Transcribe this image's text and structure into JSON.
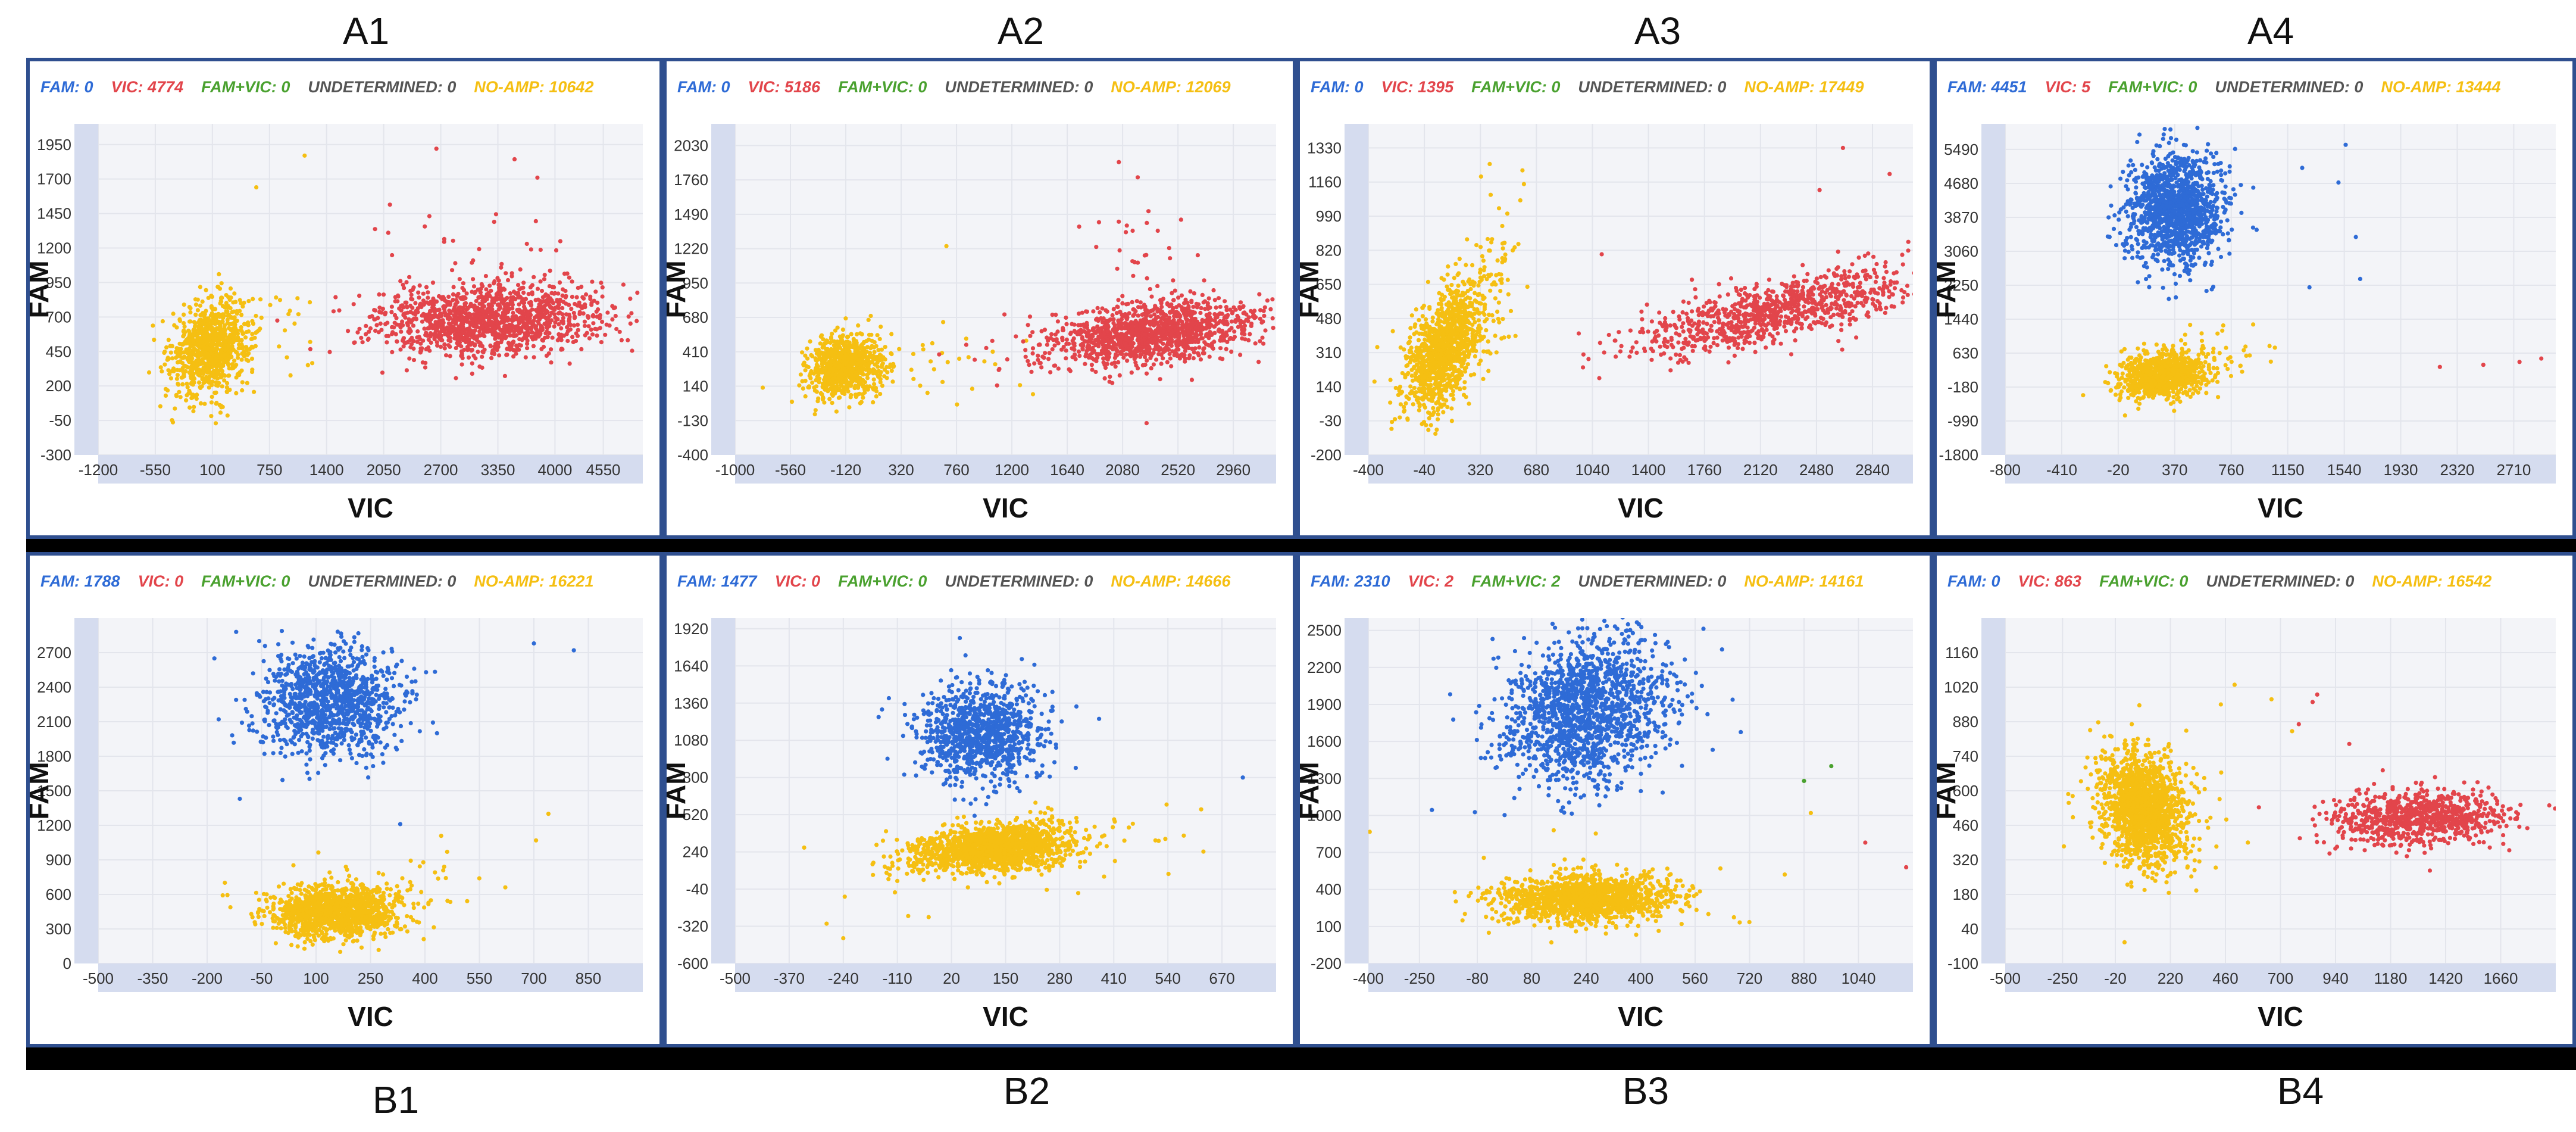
{
  "colors": {
    "fam": "#2e6bd6",
    "vic": "#e2454b",
    "fam_vic": "#4aa12f",
    "undetermined": "#555555",
    "no_amp": "#f5bf12",
    "axis_band": "#d5dcef",
    "plot_bg": "#f3f4f8",
    "grid": "#e3e5ec",
    "panel_border": "#2f4f8f",
    "band": "#000000"
  },
  "chart_data": [
    {
      "id": "A1",
      "type": "scatter",
      "title": "A1",
      "xlabel": "VIC",
      "ylabel": "FAM",
      "xlim": [
        -1200,
        5000
      ],
      "ylim": [
        -300,
        2100
      ],
      "xticks": [
        -1200,
        -550,
        100,
        750,
        1400,
        2050,
        2700,
        3350,
        4000,
        4550
      ],
      "yticks": [
        -300,
        -50,
        200,
        450,
        700,
        950,
        1200,
        1450,
        1700,
        1950
      ],
      "legend": [
        {
          "key": "fam",
          "text": "FAM: 0"
        },
        {
          "key": "vic",
          "text": "VIC: 4774"
        },
        {
          "key": "fam_vic",
          "text": "FAM+VIC: 0"
        },
        {
          "key": "undetermined",
          "text": "UNDETERMINED: 0"
        },
        {
          "key": "no_amp",
          "text": "NO-AMP: 10642"
        }
      ],
      "clusters": [
        {
          "series": "no_amp",
          "n": 900,
          "cx": 80,
          "cy": 480,
          "sx": 220,
          "sy": 170,
          "corr": 0.2
        },
        {
          "series": "no_amp",
          "n": 35,
          "cx": 750,
          "cy": 620,
          "sx": 350,
          "sy": 250,
          "corr": 0
        },
        {
          "series": "vic",
          "n": 1300,
          "cx": 3250,
          "cy": 680,
          "sx": 650,
          "sy": 130,
          "corr": 0.15
        },
        {
          "series": "vic",
          "n": 40,
          "cx": 3000,
          "cy": 1100,
          "sx": 600,
          "sy": 250,
          "corr": 0
        }
      ],
      "outliers": [
        {
          "series": "vic",
          "x": 2650,
          "y": 1920
        },
        {
          "series": "vic",
          "x": 3800,
          "y": 1710
        },
        {
          "series": "no_amp",
          "x": 1150,
          "y": 1870
        },
        {
          "series": "no_amp",
          "x": 600,
          "y": 1640
        }
      ]
    },
    {
      "id": "A2",
      "type": "scatter",
      "title": "A2",
      "xlabel": "VIC",
      "ylabel": "FAM",
      "xlim": [
        -1000,
        3300
      ],
      "ylim": [
        -400,
        2200
      ],
      "xticks": [
        -1000,
        -560,
        -120,
        320,
        760,
        1200,
        1640,
        2080,
        2520,
        2960
      ],
      "yticks": [
        -400,
        -130,
        140,
        410,
        680,
        950,
        1220,
        1490,
        1760,
        2030
      ],
      "legend": [
        {
          "key": "fam",
          "text": "FAM: 0"
        },
        {
          "key": "vic",
          "text": "VIC: 5186"
        },
        {
          "key": "fam_vic",
          "text": "FAM+VIC: 0"
        },
        {
          "key": "undetermined",
          "text": "UNDETERMINED: 0"
        },
        {
          "key": "no_amp",
          "text": "NO-AMP: 12069"
        }
      ],
      "clusters": [
        {
          "series": "no_amp",
          "n": 800,
          "cx": -120,
          "cy": 290,
          "sx": 150,
          "sy": 120,
          "corr": 0.1
        },
        {
          "series": "no_amp",
          "n": 30,
          "cx": 600,
          "cy": 320,
          "sx": 300,
          "sy": 150,
          "corr": 0
        },
        {
          "series": "vic",
          "n": 1300,
          "cx": 2300,
          "cy": 550,
          "sx": 420,
          "sy": 130,
          "corr": 0.4
        },
        {
          "series": "vic",
          "n": 40,
          "cx": 2200,
          "cy": 950,
          "sx": 300,
          "sy": 350,
          "corr": 0
        }
      ],
      "outliers": [
        {
          "series": "vic",
          "x": 2050,
          "y": 1900
        },
        {
          "series": "vic",
          "x": 2200,
          "y": 1780
        },
        {
          "series": "no_amp",
          "x": 680,
          "y": 1240
        }
      ]
    },
    {
      "id": "A3",
      "type": "scatter",
      "title": "A3",
      "xlabel": "VIC",
      "ylabel": "FAM",
      "xlim": [
        -400,
        3100
      ],
      "ylim": [
        -200,
        1450
      ],
      "xticks": [
        -400,
        -40,
        320,
        680,
        1040,
        1400,
        1760,
        2120,
        2480,
        2840
      ],
      "yticks": [
        -200,
        -30,
        140,
        310,
        480,
        650,
        820,
        990,
        1160,
        1330
      ],
      "legend": [
        {
          "key": "fam",
          "text": "FAM: 0"
        },
        {
          "key": "vic",
          "text": "VIC: 1395"
        },
        {
          "key": "fam_vic",
          "text": "FAM+VIC: 0"
        },
        {
          "key": "undetermined",
          "text": "UNDETERMINED: 0"
        },
        {
          "key": "no_amp",
          "text": "NO-AMP: 17449"
        }
      ],
      "clusters": [
        {
          "series": "no_amp",
          "n": 1100,
          "cx": 80,
          "cy": 320,
          "sx": 130,
          "sy": 150,
          "corr": 0.45
        },
        {
          "series": "no_amp",
          "n": 100,
          "cx": 350,
          "cy": 650,
          "sx": 150,
          "sy": 200,
          "corr": 0.3
        },
        {
          "series": "vic",
          "n": 900,
          "cx": 2200,
          "cy": 510,
          "sx": 450,
          "sy": 110,
          "corr": 0.7
        }
      ],
      "outliers": [
        {
          "series": "no_amp",
          "x": 380,
          "y": 1250
        },
        {
          "series": "no_amp",
          "x": 600,
          "y": 1150
        },
        {
          "series": "vic",
          "x": 2650,
          "y": 1330
        },
        {
          "series": "vic",
          "x": 2950,
          "y": 1200
        },
        {
          "series": "vic",
          "x": 2500,
          "y": 1120
        },
        {
          "series": "vic",
          "x": 1100,
          "y": 800
        }
      ]
    },
    {
      "id": "A4",
      "type": "scatter",
      "title": "A4",
      "xlabel": "VIC",
      "ylabel": "FAM",
      "xlim": [
        -800,
        3000
      ],
      "ylim": [
        -1800,
        6100
      ],
      "xticks": [
        -800,
        -410,
        -20,
        370,
        760,
        1150,
        1540,
        1930,
        2320,
        2710
      ],
      "yticks": [
        -1800,
        -990,
        -180,
        630,
        1440,
        2250,
        3060,
        3870,
        4680,
        5490
      ],
      "legend": [
        {
          "key": "fam",
          "text": "FAM: 4451"
        },
        {
          "key": "vic",
          "text": "VIC: 5"
        },
        {
          "key": "fam_vic",
          "text": "FAM+VIC: 0"
        },
        {
          "key": "undetermined",
          "text": "UNDETERMINED: 0"
        },
        {
          "key": "no_amp",
          "text": "NO-AMP: 13444"
        }
      ],
      "clusters": [
        {
          "series": "no_amp",
          "n": 900,
          "cx": 300,
          "cy": 100,
          "sx": 150,
          "sy": 280,
          "corr": 0.2
        },
        {
          "series": "no_amp",
          "n": 40,
          "cx": 600,
          "cy": 700,
          "sx": 300,
          "sy": 300,
          "corr": 0
        },
        {
          "series": "fam",
          "n": 1300,
          "cx": 370,
          "cy": 4050,
          "sx": 170,
          "sy": 650,
          "corr": 0
        }
      ],
      "outliers": [
        {
          "series": "fam",
          "x": 1250,
          "y": 5050
        },
        {
          "series": "fam",
          "x": 1500,
          "y": 4700
        },
        {
          "series": "fam",
          "x": 1620,
          "y": 3400
        },
        {
          "series": "fam",
          "x": 1650,
          "y": 2400
        },
        {
          "series": "fam",
          "x": 1300,
          "y": 2200
        },
        {
          "series": "fam",
          "x": 1550,
          "y": 5600
        },
        {
          "series": "vic",
          "x": 2200,
          "y": 300
        },
        {
          "series": "vic",
          "x": 2500,
          "y": 350
        },
        {
          "series": "vic",
          "x": 2750,
          "y": 420
        },
        {
          "series": "vic",
          "x": 2900,
          "y": 500
        }
      ]
    },
    {
      "id": "B1",
      "type": "scatter",
      "title": "B1",
      "xlabel": "VIC",
      "ylabel": "FAM",
      "xlim": [
        -500,
        1000
      ],
      "ylim": [
        0,
        3000
      ],
      "xticks": [
        -500,
        -350,
        -200,
        -50,
        100,
        250,
        400,
        550,
        700,
        850
      ],
      "yticks": [
        0,
        300,
        600,
        900,
        1200,
        1500,
        1800,
        2100,
        2400,
        2700
      ],
      "legend": [
        {
          "key": "fam",
          "text": "FAM: 1788"
        },
        {
          "key": "vic",
          "text": "VIC: 0"
        },
        {
          "key": "fam_vic",
          "text": "FAM+VIC: 0"
        },
        {
          "key": "undetermined",
          "text": "UNDETERMINED: 0"
        },
        {
          "key": "no_amp",
          "text": "NO-AMP: 16221"
        }
      ],
      "clusters": [
        {
          "series": "fam",
          "n": 1100,
          "cx": 140,
          "cy": 2280,
          "sx": 100,
          "sy": 240,
          "corr": 0
        },
        {
          "series": "no_amp",
          "n": 1300,
          "cx": 150,
          "cy": 450,
          "sx": 85,
          "sy": 110,
          "corr": 0.1
        },
        {
          "series": "no_amp",
          "n": 40,
          "cx": 350,
          "cy": 600,
          "sx": 200,
          "sy": 200,
          "corr": 0
        }
      ],
      "outliers": [
        {
          "series": "fam",
          "x": -120,
          "y": 2880
        },
        {
          "series": "fam",
          "x": 700,
          "y": 2780
        },
        {
          "series": "fam",
          "x": 810,
          "y": 2720
        },
        {
          "series": "fam",
          "x": -180,
          "y": 2650
        },
        {
          "series": "fam",
          "x": -110,
          "y": 1430
        },
        {
          "series": "no_amp",
          "x": 740,
          "y": 1300
        }
      ]
    },
    {
      "id": "B2",
      "type": "scatter",
      "title": "B2",
      "xlabel": "VIC",
      "ylabel": "FAM",
      "xlim": [
        -500,
        800
      ],
      "ylim": [
        -600,
        2000
      ],
      "xticks": [
        -500,
        -370,
        -240,
        -110,
        20,
        150,
        280,
        410,
        540,
        670
      ],
      "yticks": [
        -600,
        -320,
        -40,
        240,
        520,
        800,
        1080,
        1360,
        1640,
        1920
      ],
      "legend": [
        {
          "key": "fam",
          "text": "FAM: 1477"
        },
        {
          "key": "vic",
          "text": "VIC: 0"
        },
        {
          "key": "fam_vic",
          "text": "FAM+VIC: 0"
        },
        {
          "key": "undetermined",
          "text": "UNDETERMINED: 0"
        },
        {
          "key": "no_amp",
          "text": "NO-AMP: 14666"
        }
      ],
      "clusters": [
        {
          "series": "fam",
          "n": 1000,
          "cx": 90,
          "cy": 1140,
          "sx": 75,
          "sy": 180,
          "corr": 0
        },
        {
          "series": "no_amp",
          "n": 1500,
          "cx": 120,
          "cy": 270,
          "sx": 95,
          "sy": 90,
          "corr": 0.3
        },
        {
          "series": "no_amp",
          "n": 60,
          "cx": 200,
          "cy": 200,
          "sx": 220,
          "sy": 170,
          "corr": 0.3
        }
      ],
      "outliers": [
        {
          "series": "no_amp",
          "x": -240,
          "y": -410
        },
        {
          "series": "no_amp",
          "x": -280,
          "y": -300
        },
        {
          "series": "no_amp",
          "x": 620,
          "y": 560
        },
        {
          "series": "fam",
          "x": 720,
          "y": 800
        },
        {
          "series": "fam",
          "x": 40,
          "y": 1850
        }
      ]
    },
    {
      "id": "B3",
      "type": "scatter",
      "title": "B3",
      "xlabel": "VIC",
      "ylabel": "FAM",
      "xlim": [
        -400,
        1200
      ],
      "ylim": [
        -200,
        2600
      ],
      "xticks": [
        -400,
        -250,
        -80,
        80,
        240,
        400,
        560,
        720,
        880,
        1040
      ],
      "yticks": [
        -200,
        100,
        400,
        700,
        1000,
        1300,
        1600,
        1900,
        2200,
        2500
      ],
      "legend": [
        {
          "key": "fam",
          "text": "FAM: 2310"
        },
        {
          "key": "vic",
          "text": "VIC: 2"
        },
        {
          "key": "fam_vic",
          "text": "FAM+VIC: 2"
        },
        {
          "key": "undetermined",
          "text": "UNDETERMINED: 0"
        },
        {
          "key": "no_amp",
          "text": "NO-AMP: 14161"
        }
      ],
      "clusters": [
        {
          "series": "fam",
          "n": 1500,
          "cx": 240,
          "cy": 1850,
          "sx": 120,
          "sy": 300,
          "corr": 0.2
        },
        {
          "series": "no_amp",
          "n": 1500,
          "cx": 240,
          "cy": 330,
          "sx": 120,
          "sy": 90,
          "corr": 0.1
        },
        {
          "series": "no_amp",
          "n": 30,
          "cx": 400,
          "cy": 400,
          "sx": 250,
          "sy": 200,
          "corr": 0
        }
      ],
      "outliers": [
        {
          "series": "fam_vic",
          "x": 880,
          "y": 1280
        },
        {
          "series": "fam_vic",
          "x": 960,
          "y": 1400
        },
        {
          "series": "vic",
          "x": 1060,
          "y": 780
        },
        {
          "series": "vic",
          "x": 1180,
          "y": 580
        },
        {
          "series": "no_amp",
          "x": 900,
          "y": 1020
        }
      ]
    },
    {
      "id": "B4",
      "type": "scatter",
      "title": "B4",
      "xlabel": "VIC",
      "ylabel": "FAM",
      "xlim": [
        -500,
        1900
      ],
      "ylim": [
        -100,
        1300
      ],
      "xticks": [
        -500,
        -250,
        -20,
        220,
        460,
        700,
        940,
        1180,
        1420,
        1660
      ],
      "yticks": [
        -100,
        40,
        180,
        320,
        460,
        600,
        740,
        880,
        1020,
        1160
      ],
      "legend": [
        {
          "key": "fam",
          "text": "FAM: 0"
        },
        {
          "key": "vic",
          "text": "VIC: 863"
        },
        {
          "key": "fam_vic",
          "text": "FAM+VIC: 0"
        },
        {
          "key": "undetermined",
          "text": "UNDETERMINED: 0"
        },
        {
          "key": "no_amp",
          "text": "NO-AMP: 16542"
        }
      ],
      "clusters": [
        {
          "series": "no_amp",
          "n": 1500,
          "cx": 100,
          "cy": 520,
          "sx": 90,
          "sy": 110,
          "corr": -0.2
        },
        {
          "series": "no_amp",
          "n": 50,
          "cx": 200,
          "cy": 550,
          "sx": 250,
          "sy": 220,
          "corr": 0
        },
        {
          "series": "vic",
          "n": 800,
          "cx": 1300,
          "cy": 490,
          "sx": 200,
          "sy": 55,
          "corr": 0.1
        }
      ],
      "outliers": [
        {
          "series": "no_amp",
          "x": 500,
          "y": 1030
        },
        {
          "series": "no_amp",
          "x": 440,
          "y": 950
        },
        {
          "series": "vic",
          "x": 840,
          "y": 960
        },
        {
          "series": "vic",
          "x": 860,
          "y": 990
        },
        {
          "series": "vic",
          "x": 780,
          "y": 870
        },
        {
          "series": "vic",
          "x": 1000,
          "y": 790
        }
      ]
    }
  ]
}
